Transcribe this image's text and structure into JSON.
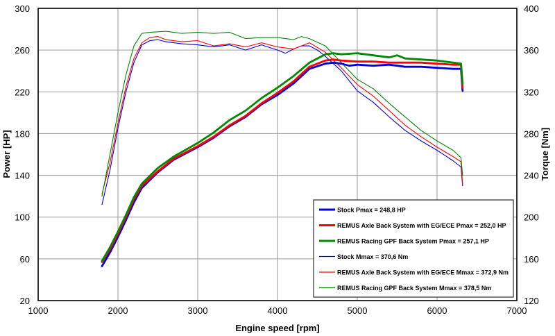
{
  "chart_data": {
    "type": "line",
    "title": "",
    "xlabel": "Engine speed [rpm]",
    "ylabel_left": "Power [HP]",
    "ylabel_right": "Torque [Nm]",
    "xlim": [
      1000,
      7000
    ],
    "ylim_left": [
      20,
      300
    ],
    "ylim_right": [
      120,
      400
    ],
    "x_ticks": [
      "1000",
      "2000",
      "3000",
      "4000",
      "5000",
      "6000",
      "7000"
    ],
    "y_left_ticks": [
      "20",
      "60",
      "100",
      "140",
      "180",
      "220",
      "260",
      "300"
    ],
    "y_right_ticks": [
      "120",
      "160",
      "200",
      "240",
      "280",
      "320",
      "360",
      "400"
    ],
    "grid": true,
    "legend_position": "bottom-right",
    "colors": {
      "stock": "#0000dd",
      "axle": "#ff0000",
      "gpf": "#008800"
    },
    "series": [
      {
        "name": "Stock Pmax = 248,8 HP",
        "axis": "left",
        "color": "#0000dd",
        "width": "thick",
        "x": [
          1800,
          1900,
          2000,
          2100,
          2200,
          2300,
          2500,
          2700,
          3000,
          3200,
          3400,
          3600,
          3800,
          4000,
          4200,
          4400,
          4600,
          4700,
          4800,
          4900,
          5000,
          5200,
          5400,
          5600,
          5800,
          6000,
          6200,
          6300,
          6320
        ],
        "y": [
          53,
          66,
          81,
          97,
          114,
          128,
          143,
          155,
          167,
          176,
          187,
          196,
          208,
          217,
          228,
          242,
          247,
          248,
          247,
          245,
          246,
          245,
          246,
          244,
          244,
          243,
          242,
          242,
          221
        ]
      },
      {
        "name": "REMUS Axle Back System with EG/ECE Pmax = 252,0 HP",
        "axis": "left",
        "color": "#ff0000",
        "width": "thick",
        "x": [
          1800,
          1900,
          2000,
          2100,
          2200,
          2300,
          2500,
          2700,
          3000,
          3200,
          3400,
          3600,
          3800,
          4000,
          4200,
          4400,
          4600,
          4700,
          4800,
          5000,
          5200,
          5400,
          5600,
          5800,
          6000,
          6200,
          6300,
          6320
        ],
        "y": [
          57,
          69,
          84,
          100,
          117,
          130,
          144,
          156,
          168,
          177,
          188,
          197,
          209,
          219,
          230,
          244,
          250,
          251,
          250,
          249,
          249,
          248,
          248,
          248,
          247,
          246,
          246,
          224
        ]
      },
      {
        "name": "REMUS Racing GPF Back System Pmax = 257,1 HP",
        "axis": "left",
        "color": "#008800",
        "width": "thick",
        "x": [
          1800,
          1900,
          2000,
          2100,
          2200,
          2300,
          2500,
          2700,
          3000,
          3200,
          3400,
          3600,
          3800,
          4000,
          4200,
          4400,
          4600,
          4700,
          4800,
          5000,
          5200,
          5400,
          5500,
          5600,
          5800,
          6000,
          6200,
          6300,
          6320
        ],
        "y": [
          58,
          71,
          86,
          102,
          119,
          132,
          147,
          158,
          171,
          181,
          193,
          202,
          214,
          224,
          235,
          248,
          256,
          257,
          256,
          257,
          255,
          253,
          255,
          252,
          251,
          250,
          248,
          247,
          228
        ]
      },
      {
        "name": "Stock Mmax = 370,6 Nm",
        "axis": "right",
        "color": "#0000dd",
        "width": "thin",
        "x": [
          1800,
          1900,
          2000,
          2100,
          2200,
          2300,
          2400,
          2500,
          2600,
          2800,
          3000,
          3200,
          3400,
          3600,
          3800,
          4000,
          4100,
          4200,
          4300,
          4400,
          4500,
          4600,
          4800,
          5000,
          5200,
          5400,
          5600,
          5800,
          6000,
          6200,
          6300,
          6320
        ],
        "y": [
          212,
          245,
          285,
          320,
          348,
          365,
          369,
          370,
          368,
          366,
          365,
          363,
          365,
          360,
          365,
          360,
          357,
          361,
          364,
          364,
          360,
          354,
          340,
          321,
          310,
          296,
          283,
          273,
          264,
          254,
          248,
          230
        ]
      },
      {
        "name": "REMUS Axle Back System with EG/ECE Mmax = 372,9 Nm",
        "axis": "right",
        "color": "#ff0000",
        "width": "thin",
        "x": [
          1800,
          1900,
          2000,
          2100,
          2200,
          2300,
          2400,
          2500,
          2600,
          2800,
          3000,
          3200,
          3400,
          3600,
          3800,
          4000,
          4200,
          4400,
          4600,
          4800,
          5000,
          5200,
          5400,
          5600,
          5800,
          6000,
          6200,
          6300,
          6320
        ],
        "y": [
          222,
          252,
          290,
          325,
          352,
          367,
          372,
          373,
          370,
          368,
          369,
          364,
          366,
          363,
          367,
          363,
          361,
          367,
          358,
          343,
          327,
          316,
          302,
          288,
          277,
          267,
          258,
          253,
          232
        ]
      },
      {
        "name": "REMUS Racing GPF Back System Mmax = 378,5 Nm",
        "axis": "right",
        "color": "#008800",
        "width": "thin",
        "x": [
          1800,
          1900,
          2000,
          2100,
          2200,
          2300,
          2400,
          2600,
          2700,
          2800,
          3000,
          3200,
          3400,
          3600,
          3800,
          4000,
          4200,
          4300,
          4400,
          4600,
          4800,
          5000,
          5200,
          5400,
          5600,
          5800,
          6000,
          6200,
          6300,
          6320
        ],
        "y": [
          220,
          260,
          300,
          336,
          364,
          376,
          377,
          378,
          377,
          376,
          377,
          376,
          377,
          371,
          372,
          372,
          370,
          373,
          371,
          364,
          348,
          332,
          323,
          309,
          296,
          283,
          273,
          264,
          257,
          240
        ]
      }
    ]
  }
}
